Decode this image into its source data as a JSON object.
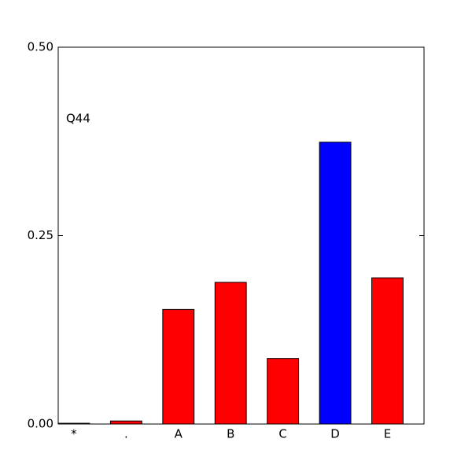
{
  "chart_data": {
    "type": "bar",
    "annotation": "Q44",
    "categories": [
      "*",
      ".",
      "A",
      "B",
      "C",
      "D",
      "E"
    ],
    "values": [
      0.001,
      0.004,
      0.152,
      0.188,
      0.087,
      0.374,
      0.194
    ],
    "colors": [
      "#ff0000",
      "#ff0000",
      "#ff0000",
      "#ff0000",
      "#ff0000",
      "#0000ff",
      "#ff0000"
    ],
    "ylim": [
      0,
      0.5
    ],
    "yticks": [
      {
        "value": 0,
        "label": "0.00"
      },
      {
        "value": 0.25,
        "label": "0.25"
      },
      {
        "value": 0.5,
        "label": "0.50"
      }
    ],
    "grid": false
  }
}
